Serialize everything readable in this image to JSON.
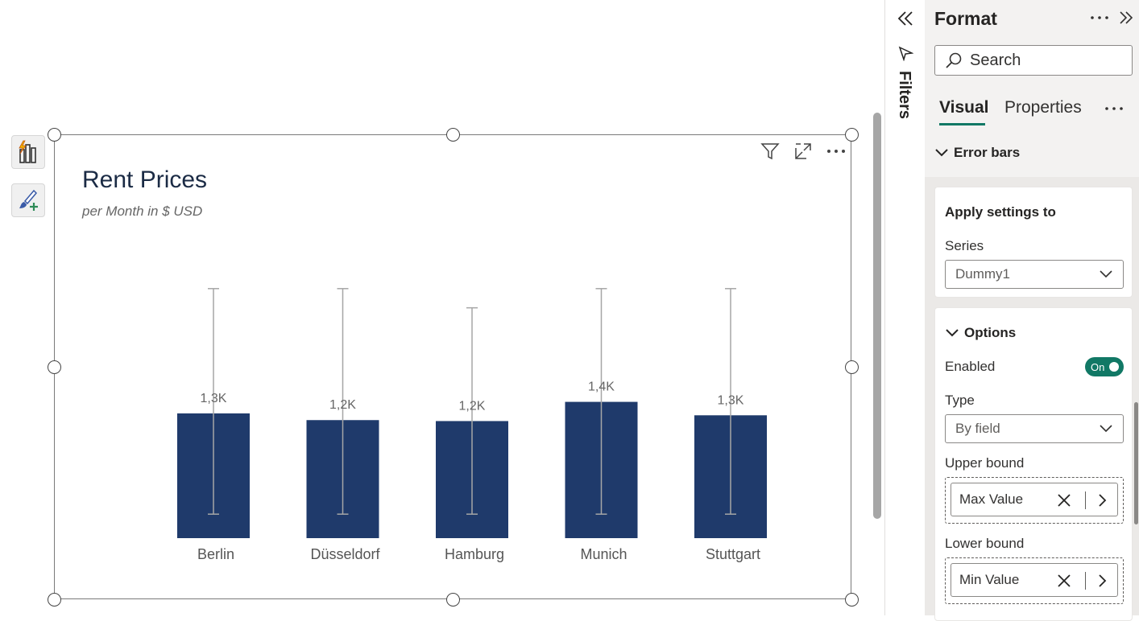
{
  "visual": {
    "title": "Rent Prices",
    "subtitle": "per Month in $ USD"
  },
  "chart_data": {
    "type": "bar",
    "title": "Rent Prices",
    "subtitle": "per Month in $ USD",
    "categories": [
      "Berlin",
      "Düsseldorf",
      "Hamburg",
      "Munich",
      "Stuttgart"
    ],
    "values": [
      1300,
      1230,
      1220,
      1420,
      1280
    ],
    "data_labels": [
      "1,3K",
      "1,2K",
      "1,2K",
      "1,4K",
      "1,3K"
    ],
    "error_bars": {
      "upper": [
        2600,
        2600,
        2400,
        2600,
        2600
      ],
      "lower": [
        250,
        250,
        250,
        250,
        250
      ]
    },
    "ylim": [
      0,
      2900
    ],
    "bar_color": "#1f3a6b",
    "error_bar_color": "#a6a6a6",
    "grid": false
  },
  "filters_pane": {
    "label": "Filters"
  },
  "format_pane": {
    "title": "Format",
    "search_placeholder": "Search",
    "tabs": [
      "Visual",
      "Properties"
    ],
    "section": "Error bars",
    "apply_settings": {
      "heading": "Apply settings to",
      "series_label": "Series",
      "series_value": "Dummy1"
    },
    "options": {
      "heading": "Options",
      "enabled_label": "Enabled",
      "enabled_value": "On",
      "type_label": "Type",
      "type_value": "By field",
      "upper_label": "Upper bound",
      "upper_value": "Max Value",
      "lower_label": "Lower bound",
      "lower_value": "Min Value"
    }
  },
  "colors": {
    "accent": "#117865",
    "title": "#1b2b45"
  }
}
